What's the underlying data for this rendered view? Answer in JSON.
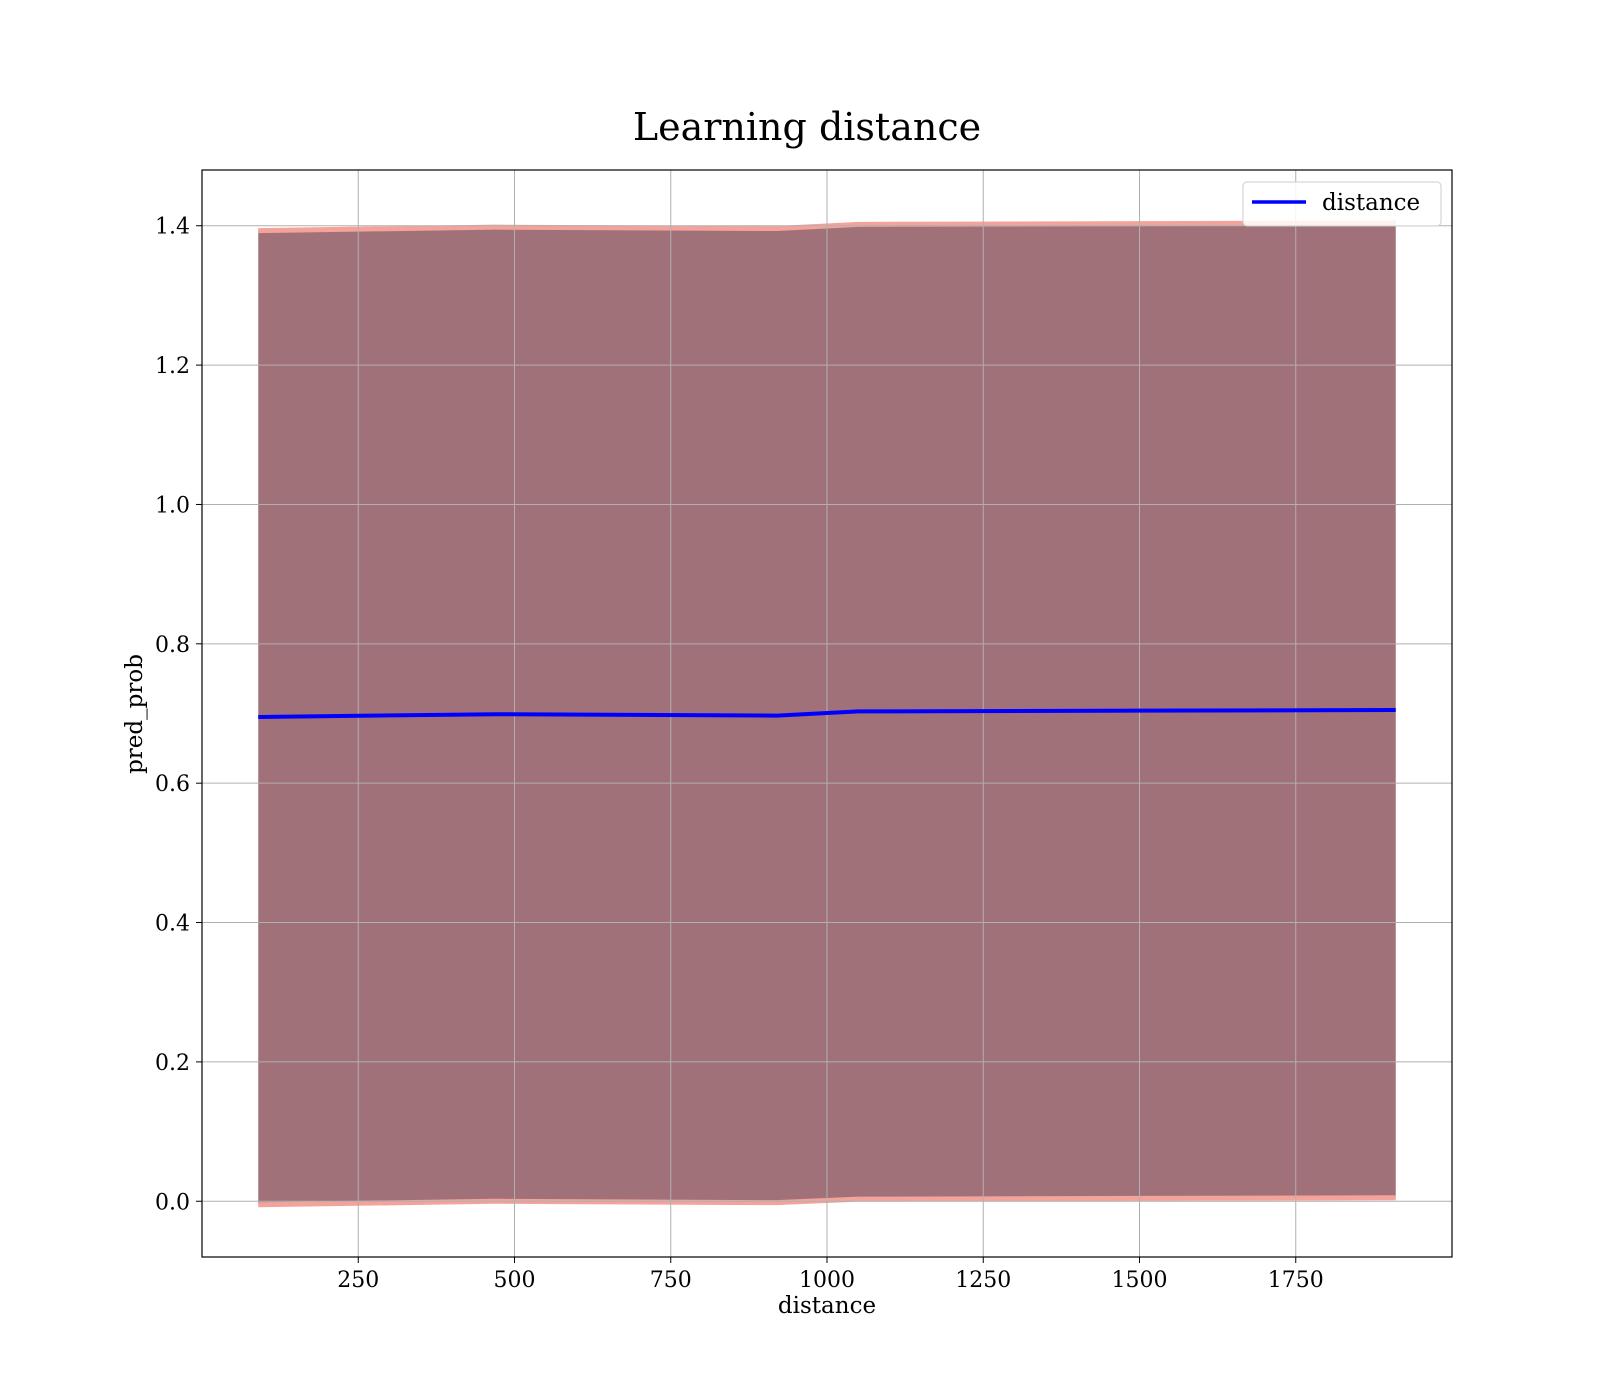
{
  "chart_data": {
    "type": "line",
    "title": "Learning distance",
    "xlabel": "distance",
    "ylabel": "pred_prob",
    "xlim": [
      0,
      2000
    ],
    "ylim": [
      -0.08,
      1.48
    ],
    "xticks": [
      250,
      500,
      750,
      1000,
      1250,
      1500,
      1750
    ],
    "xtick_labels": [
      "250",
      "500",
      "750",
      "1000",
      "1250",
      "1500",
      "1750"
    ],
    "yticks": [
      0.0,
      0.2,
      0.4,
      0.6,
      0.8,
      1.0,
      1.2,
      1.4
    ],
    "ytick_labels": [
      "0.0",
      "0.2",
      "0.4",
      "0.6",
      "0.8",
      "1.0",
      "1.2",
      "1.4"
    ],
    "grid": true,
    "legend_position": "top-right",
    "x": [
      90,
      470,
      920,
      1050,
      1910
    ],
    "series": [
      {
        "name": "distance",
        "color": "#0000ff",
        "values": [
          0.695,
          0.699,
          0.697,
          0.703,
          0.705
        ]
      }
    ],
    "band": {
      "upper": [
        1.393,
        1.398,
        1.396,
        1.402,
        1.404
      ],
      "lower": [
        -0.005,
        0.0,
        -0.002,
        0.003,
        0.005
      ],
      "fill_color": "#a1717a",
      "edge_color": "#f4a39a"
    }
  }
}
